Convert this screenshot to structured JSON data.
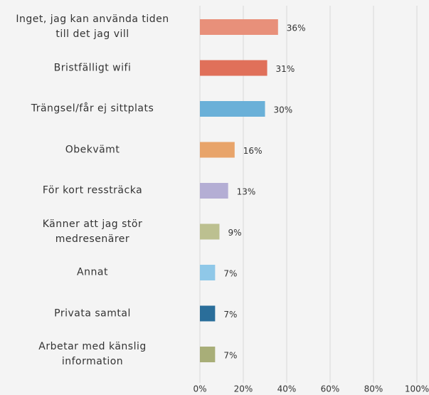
{
  "chart_data": {
    "type": "bar",
    "categories": [
      "Inget, jag kan använda tiden\ntill det jag vill",
      "Bristfälligt wifi",
      "Trängsel/får ej sittplats",
      "Obekvämt",
      "För kort ressträcka",
      "Känner att jag stör\nmedresenärer",
      "Annat",
      "Privata samtal",
      "Arbetar med känslig\ninformation"
    ],
    "values": [
      36,
      31,
      30,
      16,
      13,
      9,
      7,
      7,
      7
    ],
    "value_labels": [
      "36%",
      "31%",
      "30%",
      "16%",
      "13%",
      "9%",
      "7%",
      "7%",
      "7%"
    ],
    "colors": [
      "#e8907a",
      "#e0705a",
      "#6ab0d8",
      "#e8a46a",
      "#b4aed4",
      "#bcc090",
      "#8fc8e8",
      "#2a6e9a",
      "#a8ae78"
    ],
    "xlim": [
      0,
      100
    ],
    "xticks": [
      {
        "value": 0,
        "label": "0%"
      },
      {
        "value": 20,
        "label": "20%"
      },
      {
        "value": 40,
        "label": "40%"
      },
      {
        "value": 60,
        "label": "60%"
      },
      {
        "value": 80,
        "label": "80%"
      },
      {
        "value": 100,
        "label": "100%"
      }
    ],
    "grid": true
  }
}
